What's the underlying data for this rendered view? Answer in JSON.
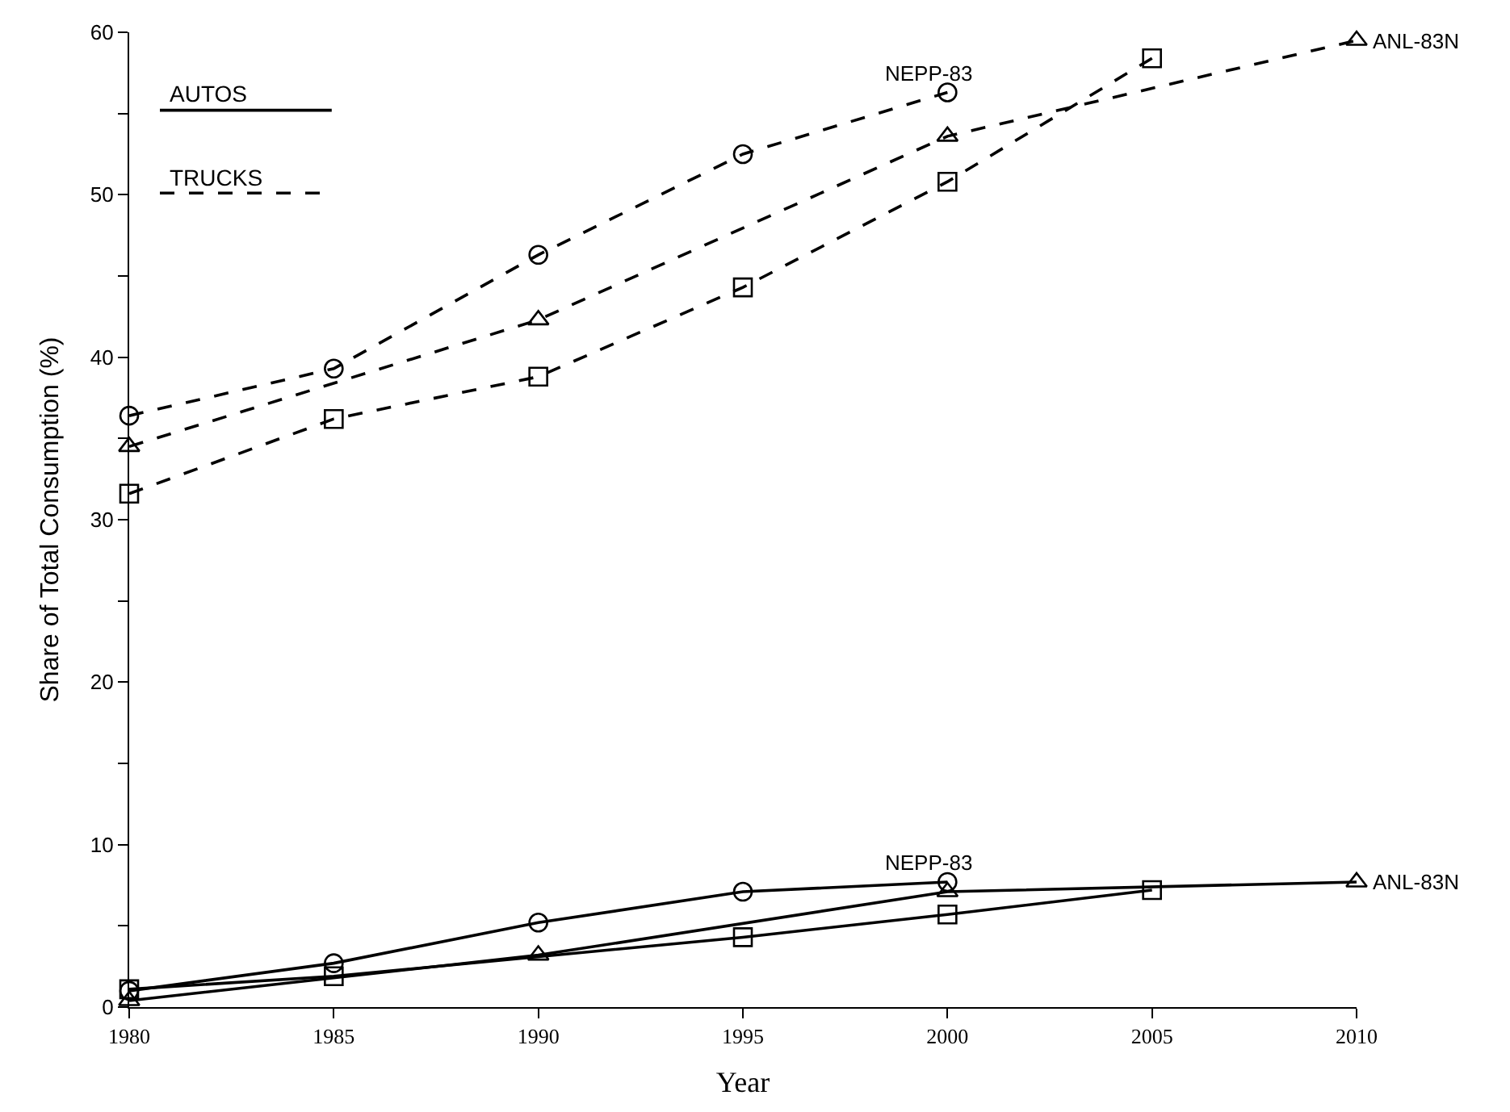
{
  "chart_data": {
    "type": "line",
    "xlabel": "Year",
    "ylabel": "Share of Total Consumption (%)",
    "xlim": [
      1980,
      2010
    ],
    "ylim": [
      0,
      60
    ],
    "xticks": [
      1980,
      1985,
      1990,
      1995,
      2000,
      2005,
      2010
    ],
    "yticks": [
      0,
      {
        "value": 5,
        "label": null
      },
      10,
      {
        "value": 15,
        "label": null
      },
      20,
      {
        "value": 25,
        "label": null
      },
      30,
      {
        "value": 35,
        "label": null
      },
      40,
      {
        "value": 45,
        "label": null
      },
      50,
      {
        "value": 55,
        "label": null
      },
      60
    ],
    "legend": false,
    "annotations": [
      "AUTOS",
      "TRUCKS"
    ],
    "series": [
      {
        "name": "NEPP-83",
        "color": "#000000",
        "marker": "circle",
        "line_style": "solid",
        "x": [
          1980,
          1985,
          1990,
          1995,
          2000
        ],
        "values": [
          1.0,
          2.7,
          5.2,
          7.1,
          7.7
        ]
      },
      {
        "name": "ANL-83N",
        "color": "#000000",
        "marker": "triangle",
        "line_style": "solid",
        "x": [
          1980,
          1990,
          2000,
          2010
        ],
        "values": [
          0.4,
          3.2,
          7.1,
          7.7
        ]
      },
      {
        "color": "#000000",
        "marker": "square",
        "line_style": "solid",
        "x": [
          1980,
          1985,
          1995,
          2000,
          2005
        ],
        "values": [
          1.1,
          1.9,
          4.3,
          5.7,
          7.2
        ]
      },
      {
        "name": "NEPP-83",
        "color": "#000000",
        "marker": "circle",
        "line_style": "dashed",
        "x": [
          1980,
          1985,
          1990,
          1995,
          2000
        ],
        "values": [
          36.4,
          39.3,
          46.3,
          52.5,
          56.3
        ]
      },
      {
        "name": "ANL-83N",
        "color": "#000000",
        "marker": "triangle",
        "line_style": "dashed",
        "x": [
          1980,
          1990,
          2000,
          2010
        ],
        "values": [
          34.5,
          42.3,
          53.6,
          59.5
        ]
      },
      {
        "color": "#000000",
        "marker": "square",
        "line_style": "dashed",
        "x": [
          1980,
          1985,
          1990,
          1995,
          2000,
          2005
        ],
        "values": [
          31.6,
          36.2,
          38.8,
          44.3,
          50.8,
          58.4
        ]
      }
    ]
  }
}
